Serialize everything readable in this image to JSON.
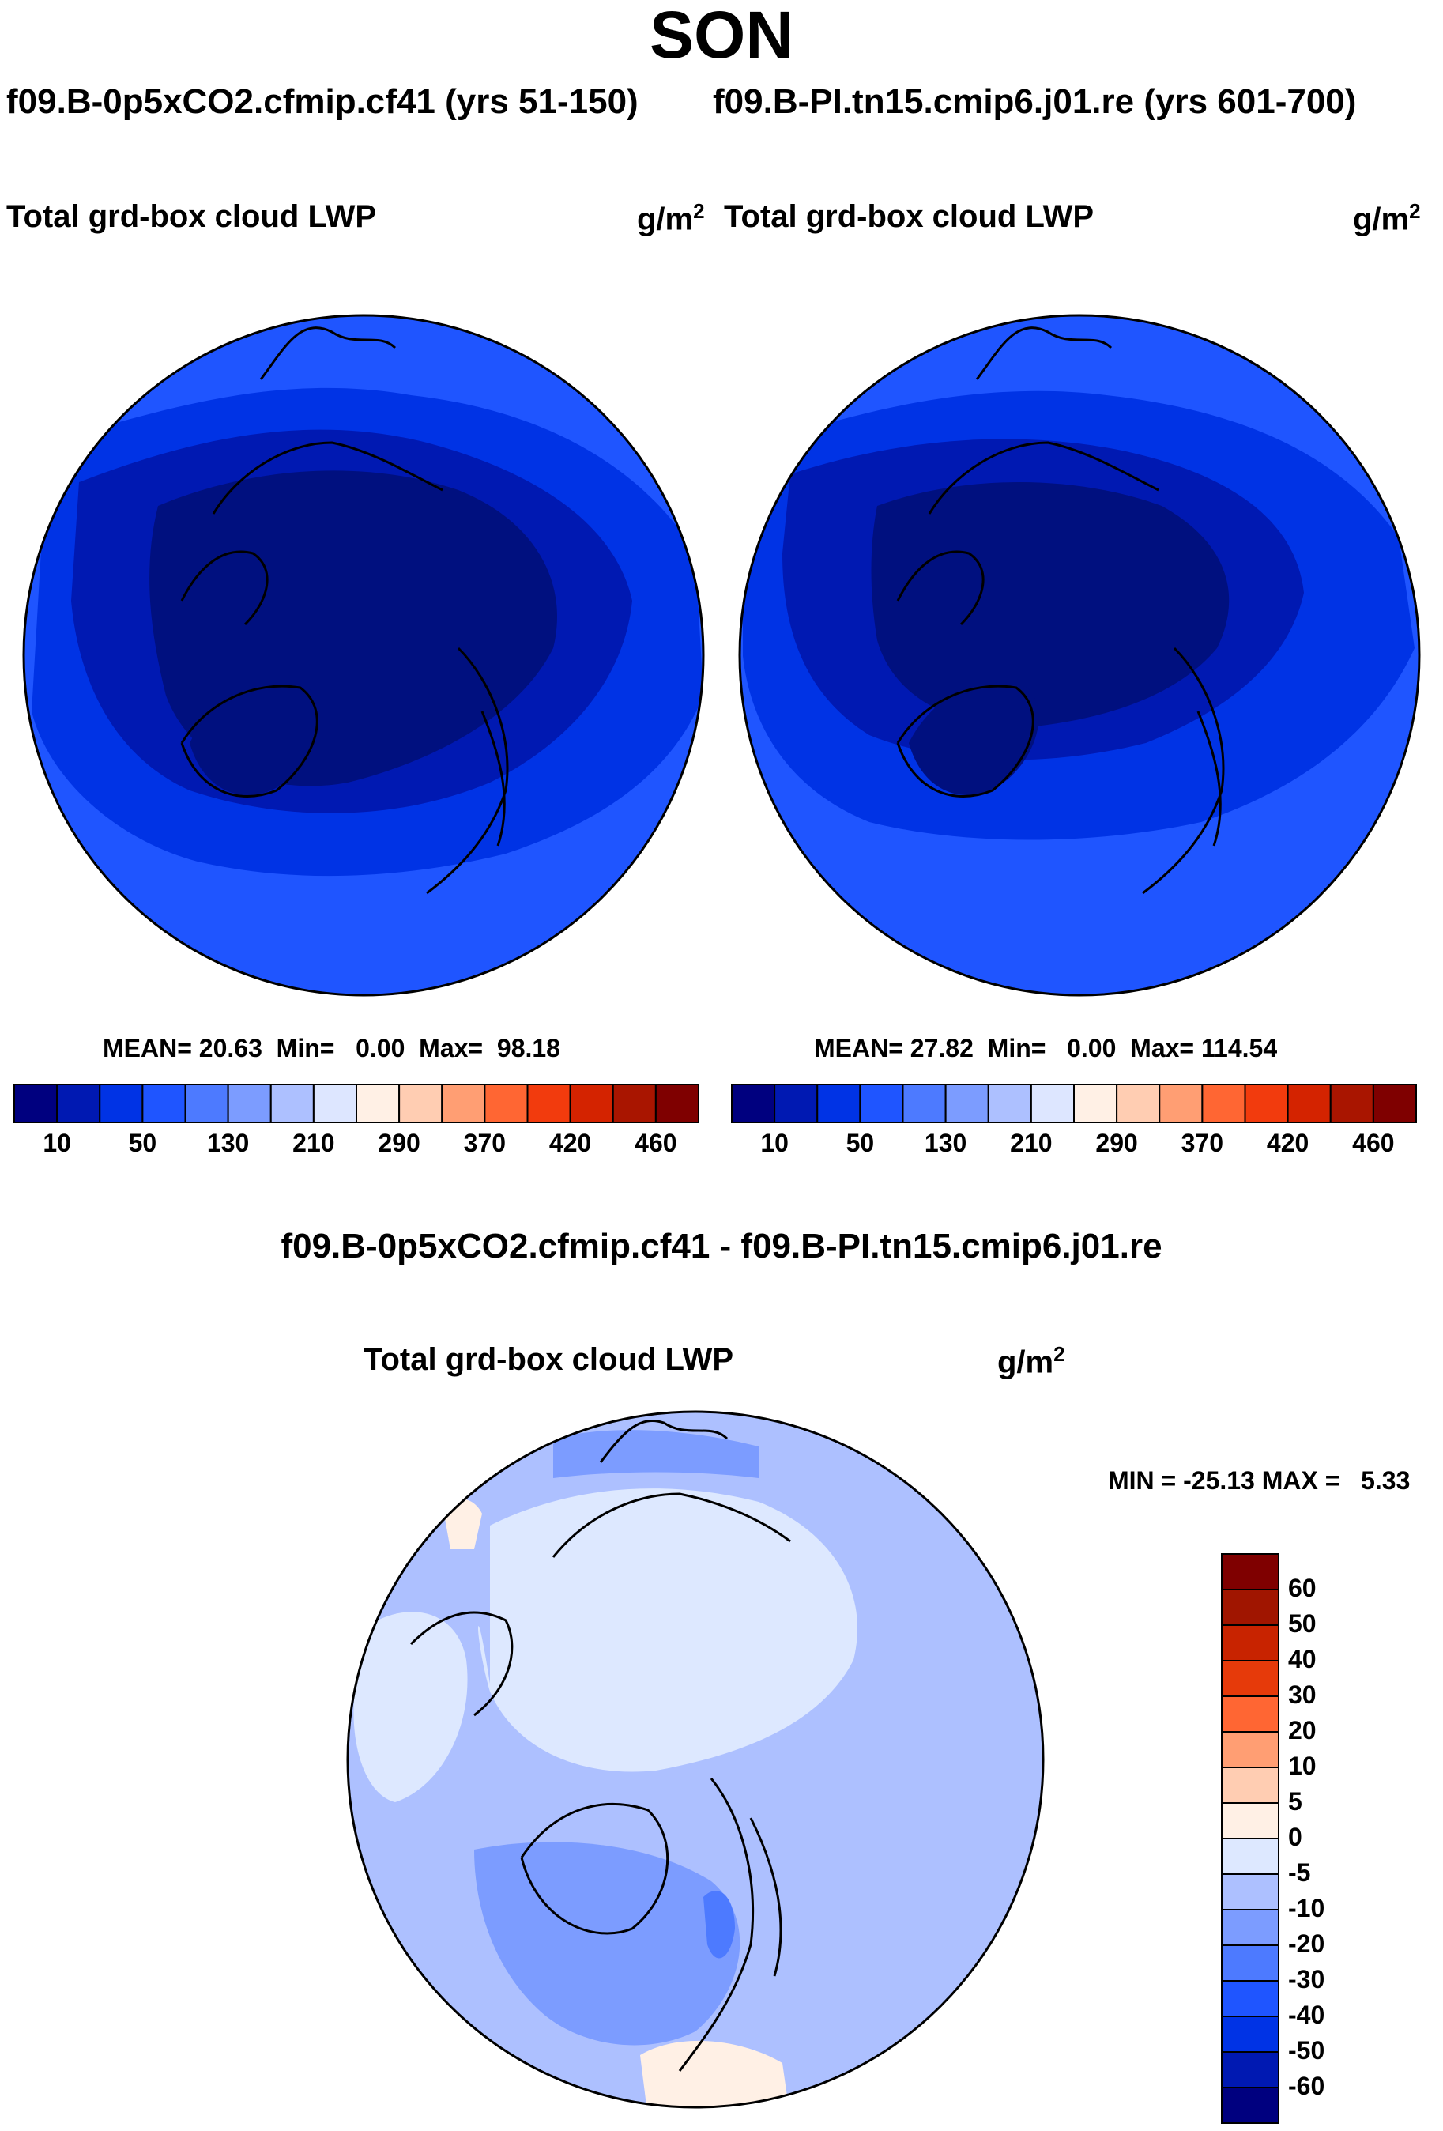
{
  "season": "SON",
  "run_titles": {
    "left": "f09.B-0p5xCO2.cfmip.cf41 (yrs 51-150)",
    "right": "f09.B-PI.tn15.cmip6.j01.re (yrs 601-700)"
  },
  "panels": [
    {
      "variable": "Total grd-box cloud LWP",
      "units_base": "g/m",
      "units_exp": "2",
      "stats": {
        "mean_label": "MEAN=",
        "mean": "20.63",
        "min_label": "Min=",
        "min": "0.00",
        "max_label": "Max=",
        "max": "98.18"
      }
    },
    {
      "variable": "Total grd-box cloud LWP",
      "units_base": "g/m",
      "units_exp": "2",
      "stats": {
        "mean_label": "MEAN=",
        "mean": "27.82",
        "min_label": "Min=",
        "min": "0.00",
        "max_label": "Max=",
        "max": "114.54"
      }
    }
  ],
  "colorbar_abs": {
    "colors": [
      "#00007f",
      "#0019b2",
      "#0033e5",
      "#1f55ff",
      "#4d7aff",
      "#7c9cff",
      "#adc0ff",
      "#dde6ff",
      "#fff0e5",
      "#ffcdb2",
      "#ff9e73",
      "#ff6633",
      "#f23b0d",
      "#d42300",
      "#a91500",
      "#7f0000"
    ],
    "labels": [
      "10",
      "50",
      "130",
      "210",
      "290",
      "370",
      "420",
      "460"
    ]
  },
  "diff": {
    "title": "f09.B-0p5xCO2.cfmip.cf41 - f09.B-PI.tn15.cmip6.j01.re",
    "variable": "Total grd-box cloud LWP",
    "units_base": "g/m",
    "units_exp": "2",
    "minmax": "MIN = -25.13 MAX =   5.33"
  },
  "colorbar_diff": {
    "colors": [
      "#00007f",
      "#0019b2",
      "#0033e5",
      "#1f55ff",
      "#4d7aff",
      "#7c9cff",
      "#adc0ff",
      "#dde8ff",
      "#fff0e5",
      "#ffcdb2",
      "#ff9e73",
      "#ff6633",
      "#e63a0a",
      "#c82300",
      "#a01500",
      "#7f0000"
    ],
    "labels": [
      "-60",
      "-50",
      "-40",
      "-30",
      "-20",
      "-10",
      "-5",
      "0",
      "5",
      "10",
      "20",
      "30",
      "40",
      "50",
      "60"
    ]
  },
  "map_colors": {
    "abs_ocean": "#1f55ff",
    "abs_mid": "#0033e5",
    "abs_dark": "#0019b2",
    "abs_darkest": "#00107f",
    "diff_light": "#dde8ff",
    "diff_mid": "#adc0ff",
    "diff_strong": "#7c9cff",
    "diff_stronger": "#4d7aff",
    "diff_pos": "#fff0e5"
  }
}
